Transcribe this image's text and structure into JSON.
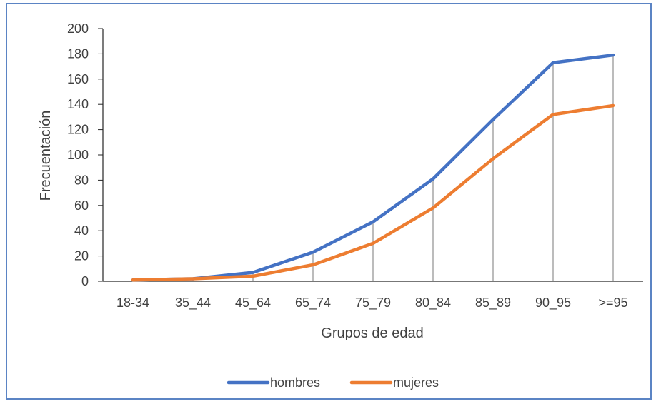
{
  "chart_data": {
    "type": "line",
    "categories": [
      "18-34",
      "35_44",
      "45_64",
      "65_74",
      "75_79",
      "80_84",
      "85_89",
      "90_95",
      ">=95"
    ],
    "series": [
      {
        "name": "hombres",
        "color": "#4472c4",
        "values": [
          1,
          2,
          7,
          23,
          47,
          81,
          128,
          173,
          179
        ]
      },
      {
        "name": "mujeres",
        "color": "#ed7d31",
        "values": [
          1,
          2,
          4,
          13,
          30,
          58,
          97,
          132,
          139
        ]
      }
    ],
    "title": "",
    "xlabel": "Grupos de edad",
    "ylabel": "Frecuentación",
    "ylim": [
      0,
      200
    ],
    "yticks": [
      "0",
      "20",
      "40",
      "60",
      "80",
      "100",
      "120",
      "140",
      "160",
      "180",
      "200"
    ],
    "grid": false,
    "drop_lines": true,
    "legend_position": "bottom",
    "frame_color": "#5b84c4"
  }
}
